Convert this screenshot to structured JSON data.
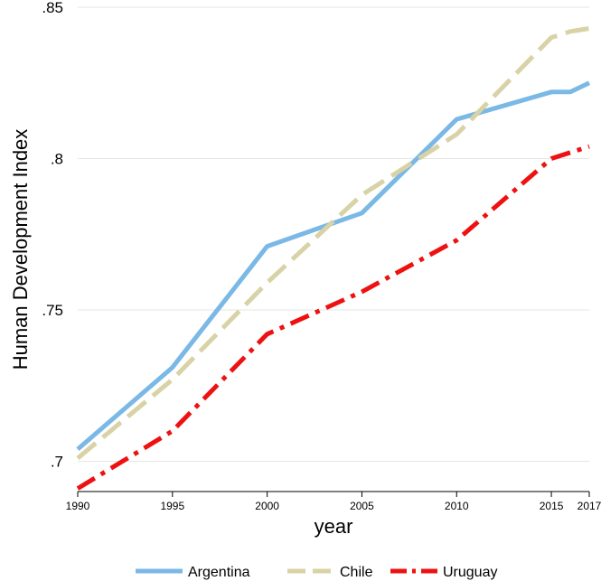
{
  "chart_data": {
    "type": "line",
    "title": "",
    "xlabel": "year",
    "ylabel": "Human Development Index",
    "xlim": [
      1990,
      2017
    ],
    "ylim": [
      0.69,
      0.85
    ],
    "x_ticks": [
      1990,
      1995,
      2000,
      2005,
      2010,
      2015,
      2017
    ],
    "x_tick_labels": [
      "1990",
      "1995",
      "2000",
      "2005",
      "2010",
      "2015",
      "2017"
    ],
    "y_ticks": [
      0.7,
      0.75,
      0.8,
      0.85
    ],
    "y_tick_labels": [
      ".7",
      ".75",
      ".8",
      ".85"
    ],
    "grid": "horizontal",
    "legend_position": "bottom",
    "x": [
      1990,
      1995,
      2000,
      2005,
      2010,
      2015,
      2016,
      2017
    ],
    "series": [
      {
        "name": "Argentina",
        "color": "#7ab8e6",
        "style": "solid",
        "values": [
          0.704,
          0.731,
          0.771,
          0.782,
          0.813,
          0.822,
          0.822,
          0.825
        ]
      },
      {
        "name": "Chile",
        "color": "#d8d2a6",
        "style": "dash",
        "values": [
          0.701,
          0.727,
          0.759,
          0.788,
          0.808,
          0.84,
          0.842,
          0.843
        ]
      },
      {
        "name": "Uruguay",
        "color": "#ee1111",
        "style": "dashdot",
        "values": [
          0.691,
          0.71,
          0.742,
          0.756,
          0.773,
          0.8,
          0.802,
          0.804
        ]
      }
    ]
  }
}
